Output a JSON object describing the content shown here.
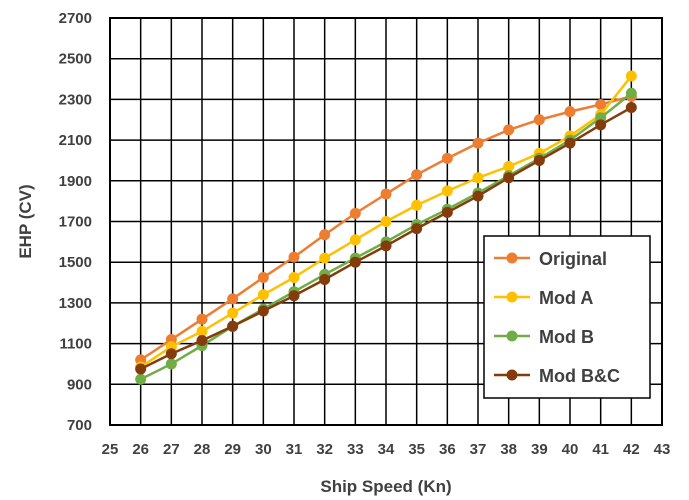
{
  "chart_data": {
    "type": "line",
    "title": "",
    "xlabel": "Ship Speed (Kn)",
    "ylabel": "EHP (CV)",
    "xlim": [
      25,
      43
    ],
    "ylim": [
      700,
      2700
    ],
    "xticks": [
      25,
      26,
      27,
      28,
      29,
      30,
      31,
      32,
      33,
      34,
      35,
      36,
      37,
      38,
      39,
      40,
      41,
      42,
      43
    ],
    "yticks": [
      700,
      900,
      1100,
      1300,
      1500,
      1700,
      1900,
      2100,
      2300,
      2500,
      2700
    ],
    "xtick_labels": [
      "25",
      "26",
      "27",
      "28",
      "29",
      "30",
      "31",
      "32",
      "33",
      "34",
      "35",
      "36",
      "37",
      "38",
      "39",
      "40",
      "41",
      "42",
      "43"
    ],
    "ytick_labels": [
      "700",
      "900",
      "1100",
      "1300",
      "1500",
      "1700",
      "1900",
      "2100",
      "2300",
      "2500",
      "2700"
    ],
    "grid": true,
    "legend_position": "bottom-right",
    "series": [
      {
        "name": "Original",
        "color": "#ED7D31",
        "x": [
          26,
          27,
          28,
          29,
          30,
          31,
          32,
          33,
          34,
          35,
          36,
          37,
          38,
          39,
          40,
          41,
          42
        ],
        "y": [
          1020,
          1120,
          1220,
          1320,
          1425,
          1525,
          1635,
          1740,
          1835,
          1930,
          2010,
          2085,
          2150,
          2200,
          2240,
          2275,
          2315
        ]
      },
      {
        "name": "Mod A",
        "color": "#FFC000",
        "x": [
          26,
          27,
          28,
          29,
          30,
          31,
          32,
          33,
          34,
          35,
          36,
          37,
          38,
          39,
          40,
          41,
          42
        ],
        "y": [
          985,
          1085,
          1160,
          1250,
          1340,
          1425,
          1520,
          1610,
          1700,
          1780,
          1850,
          1915,
          1970,
          2035,
          2120,
          2225,
          2415
        ]
      },
      {
        "name": "Mod B",
        "color": "#70AD47",
        "x": [
          26,
          27,
          28,
          29,
          30,
          31,
          32,
          33,
          34,
          35,
          36,
          37,
          38,
          39,
          40,
          41,
          42
        ],
        "y": [
          925,
          1000,
          1090,
          1185,
          1270,
          1355,
          1440,
          1520,
          1600,
          1685,
          1760,
          1840,
          1925,
          2010,
          2100,
          2210,
          2330
        ]
      },
      {
        "name": "Mod B&C",
        "color": "#843C0C",
        "x": [
          26,
          27,
          28,
          29,
          30,
          31,
          32,
          33,
          34,
          35,
          36,
          37,
          38,
          39,
          40,
          41,
          42
        ],
        "y": [
          975,
          1050,
          1115,
          1185,
          1260,
          1335,
          1415,
          1500,
          1580,
          1665,
          1745,
          1825,
          1915,
          2000,
          2085,
          2175,
          2260
        ]
      }
    ]
  }
}
